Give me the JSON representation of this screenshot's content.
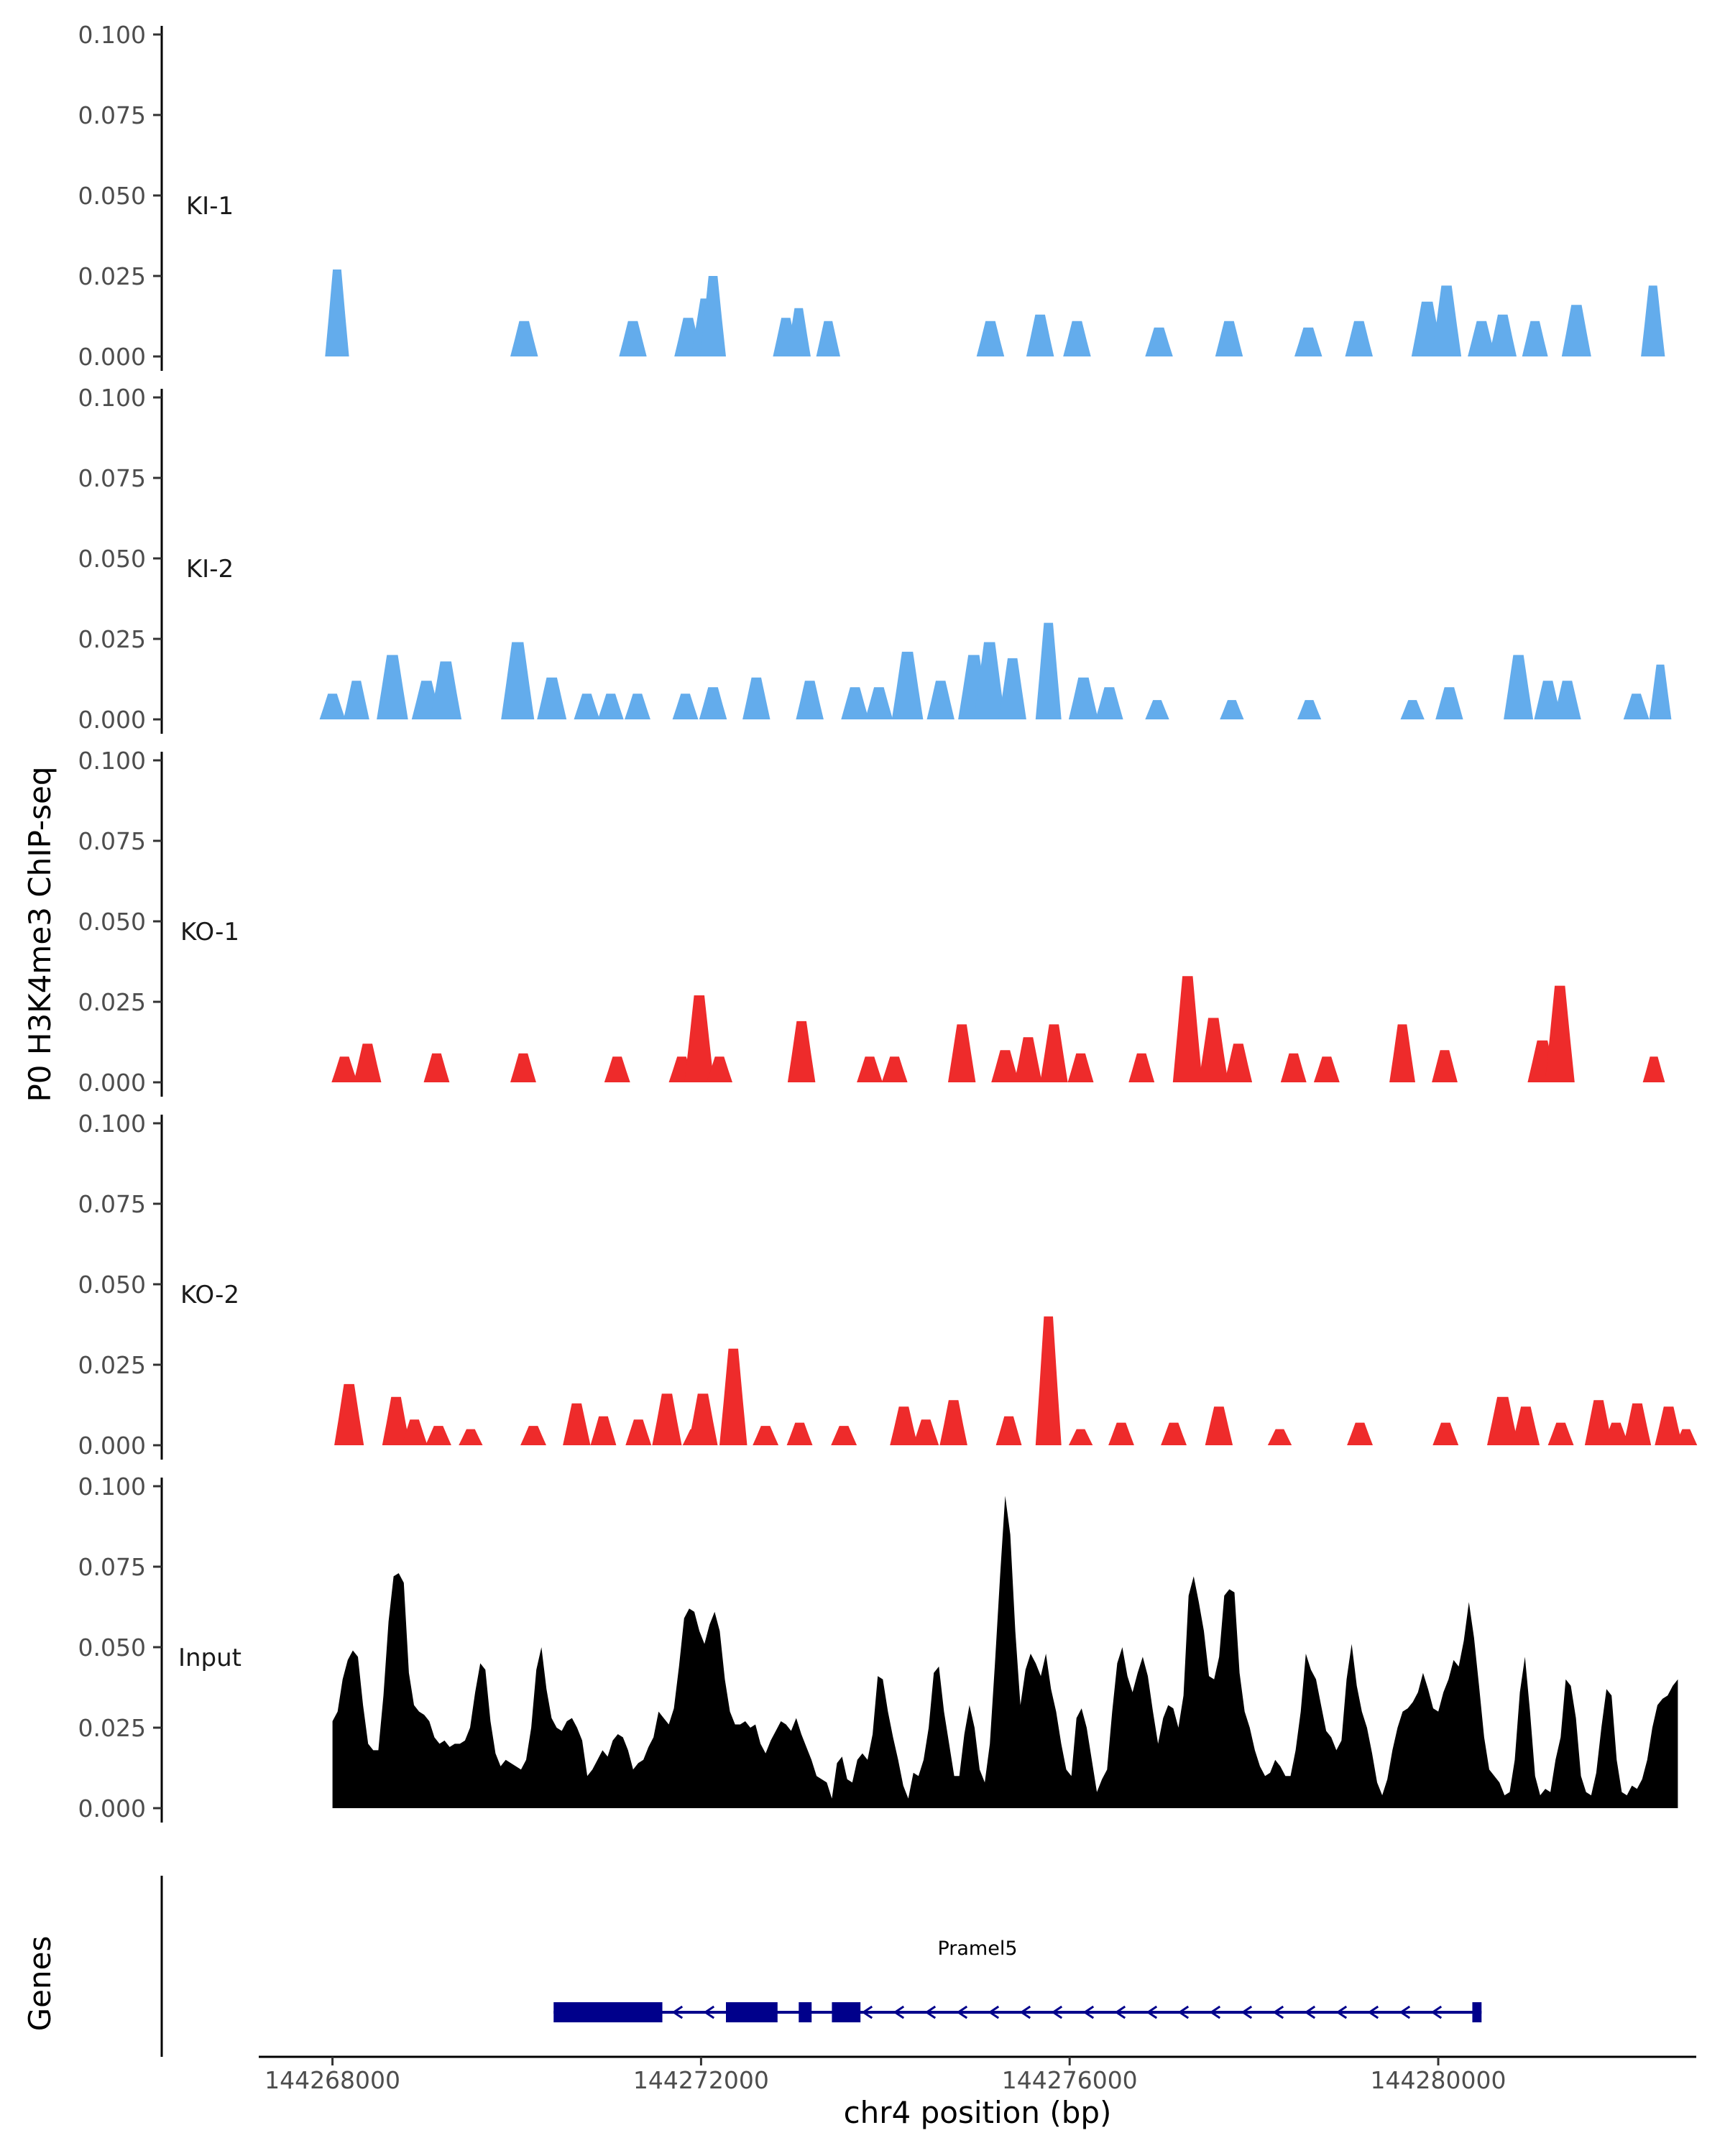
{
  "chart_data": {
    "type": "area",
    "ylabel": "P0 H3K4me3 ChIP-seq",
    "xlabel": "chr4 position (bp)",
    "genes_label": "Genes",
    "y_ticks": [
      "0.000",
      "0.025",
      "0.050",
      "0.075",
      "0.100"
    ],
    "ylim": [
      0,
      0.1
    ],
    "xlim": [
      144267200,
      144282800
    ],
    "x_ticks": [
      {
        "value": 144268000,
        "label": "144268000"
      },
      {
        "value": 144272000,
        "label": "144272000"
      },
      {
        "value": 144276000,
        "label": "144276000"
      },
      {
        "value": 144280000,
        "label": "144280000"
      }
    ],
    "tracks": [
      {
        "name": "KI-1",
        "color": "#63ACEC",
        "peaks": [
          [
            144268050,
            0.027,
            130
          ],
          [
            144270080,
            0.011,
            150
          ],
          [
            144271260,
            0.011,
            150
          ],
          [
            144271860,
            0.012,
            150
          ],
          [
            144272050,
            0.018,
            160
          ],
          [
            144272130,
            0.025,
            140
          ],
          [
            144272920,
            0.012,
            140
          ],
          [
            144273060,
            0.015,
            130
          ],
          [
            144273380,
            0.011,
            130
          ],
          [
            144275140,
            0.011,
            150
          ],
          [
            144275680,
            0.013,
            150
          ],
          [
            144276080,
            0.011,
            150
          ],
          [
            144276970,
            0.009,
            150
          ],
          [
            144277730,
            0.011,
            150
          ],
          [
            144278590,
            0.009,
            150
          ],
          [
            144279140,
            0.011,
            150
          ],
          [
            144279880,
            0.017,
            170
          ],
          [
            144280090,
            0.022,
            160
          ],
          [
            144280470,
            0.011,
            150
          ],
          [
            144280700,
            0.013,
            150
          ],
          [
            144281050,
            0.011,
            140
          ],
          [
            144281500,
            0.016,
            160
          ],
          [
            144282330,
            0.022,
            130
          ]
        ]
      },
      {
        "name": "KI-2",
        "color": "#63ACEC",
        "peaks": [
          [
            144268000,
            0.008,
            140
          ],
          [
            144268260,
            0.012,
            140
          ],
          [
            144268650,
            0.02,
            170
          ],
          [
            144269020,
            0.012,
            160
          ],
          [
            144269230,
            0.018,
            170
          ],
          [
            144270010,
            0.024,
            180
          ],
          [
            144270380,
            0.013,
            160
          ],
          [
            144270760,
            0.008,
            140
          ],
          [
            144271020,
            0.008,
            140
          ],
          [
            144271310,
            0.008,
            140
          ],
          [
            144271830,
            0.008,
            140
          ],
          [
            144272130,
            0.01,
            150
          ],
          [
            144272600,
            0.013,
            150
          ],
          [
            144273180,
            0.012,
            150
          ],
          [
            144273670,
            0.01,
            150
          ],
          [
            144273930,
            0.01,
            150
          ],
          [
            144274240,
            0.021,
            170
          ],
          [
            144274600,
            0.012,
            150
          ],
          [
            144274960,
            0.02,
            170
          ],
          [
            144275130,
            0.024,
            170
          ],
          [
            144275380,
            0.019,
            150
          ],
          [
            144275770,
            0.03,
            140
          ],
          [
            144276150,
            0.013,
            160
          ],
          [
            144276430,
            0.01,
            150
          ],
          [
            144276950,
            0.006,
            130
          ],
          [
            144277760,
            0.006,
            130
          ],
          [
            144278600,
            0.006,
            130
          ],
          [
            144279720,
            0.006,
            130
          ],
          [
            144280120,
            0.01,
            150
          ],
          [
            144280870,
            0.02,
            160
          ],
          [
            144281190,
            0.012,
            150
          ],
          [
            144281400,
            0.012,
            150
          ],
          [
            144282150,
            0.008,
            140
          ],
          [
            144282410,
            0.017,
            120
          ]
        ]
      },
      {
        "name": "KO-1",
        "color": "#EE2B2B",
        "peaks": [
          [
            144268130,
            0.008,
            140
          ],
          [
            144268380,
            0.012,
            150
          ],
          [
            144269130,
            0.009,
            140
          ],
          [
            144270070,
            0.009,
            140
          ],
          [
            144271090,
            0.008,
            140
          ],
          [
            144271790,
            0.008,
            140
          ],
          [
            144271980,
            0.027,
            160
          ],
          [
            144272200,
            0.008,
            140
          ],
          [
            144273090,
            0.019,
            150
          ],
          [
            144273830,
            0.008,
            140
          ],
          [
            144274100,
            0.008,
            140
          ],
          [
            144274830,
            0.018,
            150
          ],
          [
            144275300,
            0.01,
            150
          ],
          [
            144275550,
            0.014,
            150
          ],
          [
            144275830,
            0.018,
            150
          ],
          [
            144276120,
            0.009,
            140
          ],
          [
            144276780,
            0.009,
            140
          ],
          [
            144277280,
            0.033,
            160
          ],
          [
            144277560,
            0.02,
            160
          ],
          [
            144277830,
            0.012,
            150
          ],
          [
            144278430,
            0.009,
            140
          ],
          [
            144278790,
            0.008,
            140
          ],
          [
            144279610,
            0.018,
            140
          ],
          [
            144280070,
            0.01,
            140
          ],
          [
            144281130,
            0.013,
            160
          ],
          [
            144281320,
            0.03,
            160
          ],
          [
            144282340,
            0.008,
            120
          ]
        ]
      },
      {
        "name": "KO-2",
        "color": "#EE2B2B",
        "peaks": [
          [
            144268180,
            0.019,
            160
          ],
          [
            144268690,
            0.015,
            150
          ],
          [
            144268890,
            0.008,
            140
          ],
          [
            144269150,
            0.006,
            140
          ],
          [
            144269500,
            0.005,
            130
          ],
          [
            144270180,
            0.006,
            140
          ],
          [
            144270650,
            0.013,
            150
          ],
          [
            144270940,
            0.009,
            140
          ],
          [
            144271320,
            0.008,
            140
          ],
          [
            144271630,
            0.016,
            160
          ],
          [
            144271930,
            0.005,
            130
          ],
          [
            144272020,
            0.016,
            160
          ],
          [
            144272350,
            0.03,
            150
          ],
          [
            144272700,
            0.006,
            140
          ],
          [
            144273070,
            0.007,
            140
          ],
          [
            144273550,
            0.006,
            140
          ],
          [
            144274200,
            0.012,
            150
          ],
          [
            144274440,
            0.008,
            140
          ],
          [
            144274740,
            0.014,
            150
          ],
          [
            144275340,
            0.009,
            140
          ],
          [
            144275770,
            0.04,
            140
          ],
          [
            144276120,
            0.005,
            130
          ],
          [
            144276560,
            0.007,
            140
          ],
          [
            144277130,
            0.007,
            140
          ],
          [
            144277620,
            0.012,
            150
          ],
          [
            144278280,
            0.005,
            130
          ],
          [
            144279150,
            0.007,
            140
          ],
          [
            144280080,
            0.007,
            140
          ],
          [
            144280700,
            0.015,
            170
          ],
          [
            144280950,
            0.012,
            150
          ],
          [
            144281330,
            0.007,
            140
          ],
          [
            144281740,
            0.014,
            150
          ],
          [
            144281930,
            0.007,
            140
          ],
          [
            144282160,
            0.013,
            150
          ],
          [
            144282500,
            0.012,
            150
          ],
          [
            144282690,
            0.005,
            120
          ]
        ]
      },
      {
        "name": "Input",
        "color": "#000000",
        "x_range": [
          144268000,
          144282600
        ],
        "values": [
          0.027,
          0.03,
          0.04,
          0.046,
          0.049,
          0.047,
          0.032,
          0.02,
          0.018,
          0.018,
          0.035,
          0.058,
          0.072,
          0.073,
          0.07,
          0.042,
          0.032,
          0.03,
          0.029,
          0.027,
          0.022,
          0.02,
          0.021,
          0.019,
          0.02,
          0.02,
          0.021,
          0.025,
          0.036,
          0.045,
          0.043,
          0.027,
          0.017,
          0.013,
          0.015,
          0.014,
          0.013,
          0.012,
          0.015,
          0.025,
          0.043,
          0.05,
          0.037,
          0.028,
          0.025,
          0.024,
          0.027,
          0.028,
          0.025,
          0.021,
          0.01,
          0.012,
          0.015,
          0.018,
          0.016,
          0.021,
          0.023,
          0.022,
          0.018,
          0.012,
          0.014,
          0.015,
          0.019,
          0.022,
          0.03,
          0.028,
          0.026,
          0.031,
          0.044,
          0.059,
          0.062,
          0.061,
          0.055,
          0.051,
          0.057,
          0.061,
          0.055,
          0.04,
          0.03,
          0.026,
          0.026,
          0.027,
          0.025,
          0.026,
          0.02,
          0.017,
          0.021,
          0.024,
          0.027,
          0.026,
          0.024,
          0.028,
          0.023,
          0.019,
          0.015,
          0.01,
          0.009,
          0.008,
          0.003,
          0.014,
          0.016,
          0.009,
          0.008,
          0.015,
          0.017,
          0.015,
          0.023,
          0.041,
          0.04,
          0.03,
          0.022,
          0.015,
          0.007,
          0.003,
          0.011,
          0.01,
          0.015,
          0.025,
          0.042,
          0.044,
          0.03,
          0.02,
          0.01,
          0.01,
          0.023,
          0.032,
          0.025,
          0.012,
          0.008,
          0.02,
          0.045,
          0.072,
          0.097,
          0.085,
          0.055,
          0.032,
          0.043,
          0.048,
          0.045,
          0.041,
          0.048,
          0.037,
          0.03,
          0.02,
          0.012,
          0.01,
          0.028,
          0.031,
          0.025,
          0.015,
          0.005,
          0.009,
          0.012,
          0.03,
          0.045,
          0.05,
          0.041,
          0.036,
          0.042,
          0.047,
          0.041,
          0.03,
          0.02,
          0.028,
          0.032,
          0.031,
          0.025,
          0.035,
          0.066,
          0.072,
          0.064,
          0.055,
          0.041,
          0.04,
          0.047,
          0.066,
          0.068,
          0.067,
          0.042,
          0.03,
          0.025,
          0.018,
          0.013,
          0.01,
          0.011,
          0.015,
          0.013,
          0.01,
          0.01,
          0.018,
          0.03,
          0.048,
          0.043,
          0.04,
          0.032,
          0.024,
          0.022,
          0.018,
          0.021,
          0.04,
          0.051,
          0.038,
          0.03,
          0.025,
          0.017,
          0.008,
          0.004,
          0.009,
          0.018,
          0.025,
          0.03,
          0.031,
          0.033,
          0.036,
          0.042,
          0.037,
          0.031,
          0.03,
          0.036,
          0.04,
          0.046,
          0.044,
          0.052,
          0.064,
          0.053,
          0.038,
          0.022,
          0.012,
          0.01,
          0.008,
          0.004,
          0.005,
          0.015,
          0.036,
          0.047,
          0.03,
          0.01,
          0.004,
          0.006,
          0.005,
          0.015,
          0.022,
          0.04,
          0.038,
          0.028,
          0.01,
          0.005,
          0.004,
          0.011,
          0.025,
          0.037,
          0.035,
          0.015,
          0.005,
          0.004,
          0.007,
          0.006,
          0.009,
          0.015,
          0.025,
          0.032,
          0.034,
          0.035,
          0.038,
          0.04
        ]
      }
    ],
    "gene": {
      "name": "Pramel5",
      "color": "#00008B",
      "start": 144270400,
      "end": 144280470,
      "strand": "-",
      "exons": [
        [
          144270400,
          144271580
        ],
        [
          144272270,
          144272830
        ],
        [
          144273060,
          144273200
        ],
        [
          144273420,
          144273730
        ],
        [
          144280370,
          144280470
        ]
      ]
    }
  }
}
